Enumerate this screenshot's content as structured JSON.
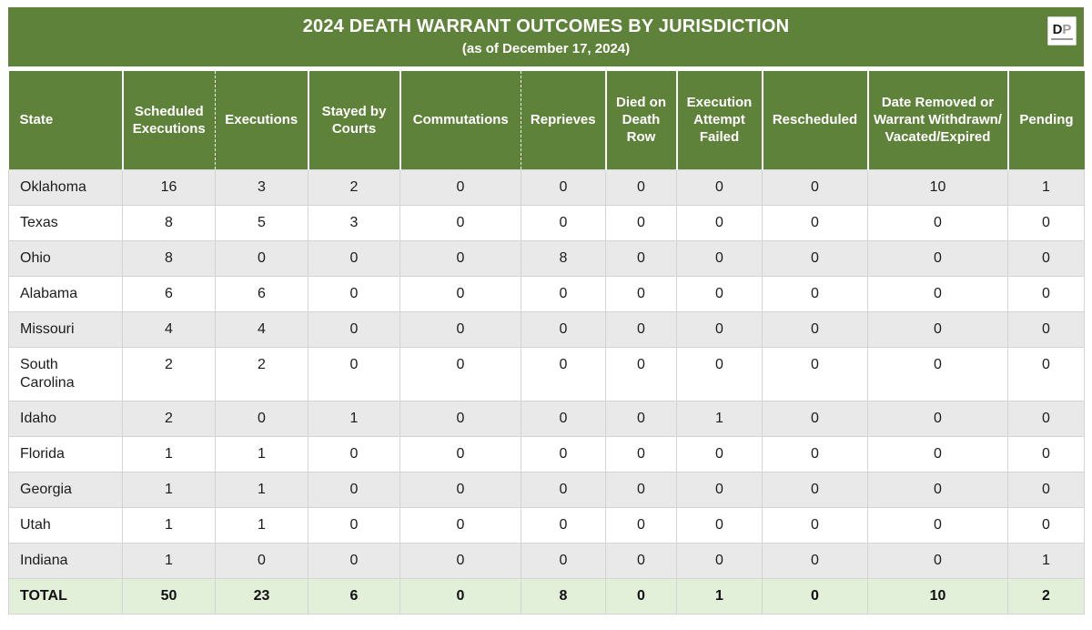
{
  "header": {
    "title": "2024 DEATH WARRANT OUTCOMES BY JURISDICTION",
    "subtitle": "(as of December 17, 2024)",
    "logo": {
      "letter_d": "D",
      "letter_p": "P"
    }
  },
  "colors": {
    "banner_green": "#5e8239",
    "header_text": "#ffffff",
    "row_alt_gray": "#e9e9e9",
    "row_white": "#ffffff",
    "total_row_green": "#e2efd9",
    "grid_border": "#d4d4d4",
    "data_text": "#1c1c1c"
  },
  "chart_data": {
    "type": "table",
    "title": "2024 DEATH WARRANT OUTCOMES BY JURISDICTION",
    "subtitle": "(as of December 17, 2024)",
    "columns": [
      "State",
      "Scheduled Executions",
      "Executions",
      "Stayed by Courts",
      "Commutations",
      "Reprieves",
      "Died on Death Row",
      "Execution Attempt Failed",
      "Rescheduled",
      "Date Removed or Warrant Withdrawn/ Vacated/Expired",
      "Pending"
    ],
    "rows": [
      {
        "state": "Oklahoma",
        "values": [
          16,
          3,
          2,
          0,
          0,
          0,
          0,
          0,
          10,
          1
        ]
      },
      {
        "state": "Texas",
        "values": [
          8,
          5,
          3,
          0,
          0,
          0,
          0,
          0,
          0,
          0
        ]
      },
      {
        "state": "Ohio",
        "values": [
          8,
          0,
          0,
          0,
          8,
          0,
          0,
          0,
          0,
          0
        ]
      },
      {
        "state": "Alabama",
        "values": [
          6,
          6,
          0,
          0,
          0,
          0,
          0,
          0,
          0,
          0
        ]
      },
      {
        "state": "Missouri",
        "values": [
          4,
          4,
          0,
          0,
          0,
          0,
          0,
          0,
          0,
          0
        ]
      },
      {
        "state": "South Carolina",
        "values": [
          2,
          2,
          0,
          0,
          0,
          0,
          0,
          0,
          0,
          0
        ]
      },
      {
        "state": "Idaho",
        "values": [
          2,
          0,
          1,
          0,
          0,
          0,
          1,
          0,
          0,
          0
        ]
      },
      {
        "state": "Florida",
        "values": [
          1,
          1,
          0,
          0,
          0,
          0,
          0,
          0,
          0,
          0
        ]
      },
      {
        "state": "Georgia",
        "values": [
          1,
          1,
          0,
          0,
          0,
          0,
          0,
          0,
          0,
          0
        ]
      },
      {
        "state": "Utah",
        "values": [
          1,
          1,
          0,
          0,
          0,
          0,
          0,
          0,
          0,
          0
        ]
      },
      {
        "state": "Indiana",
        "values": [
          1,
          0,
          0,
          0,
          0,
          0,
          0,
          0,
          0,
          1
        ]
      }
    ],
    "total_row": {
      "state": "TOTAL",
      "values": [
        50,
        23,
        6,
        0,
        8,
        0,
        1,
        0,
        10,
        2
      ]
    },
    "layout_hints": {
      "alternating_rows": true,
      "first_data_row_shaded": true,
      "dashed_header_separators_after": [
        "Scheduled Executions",
        "Commutations"
      ]
    }
  }
}
